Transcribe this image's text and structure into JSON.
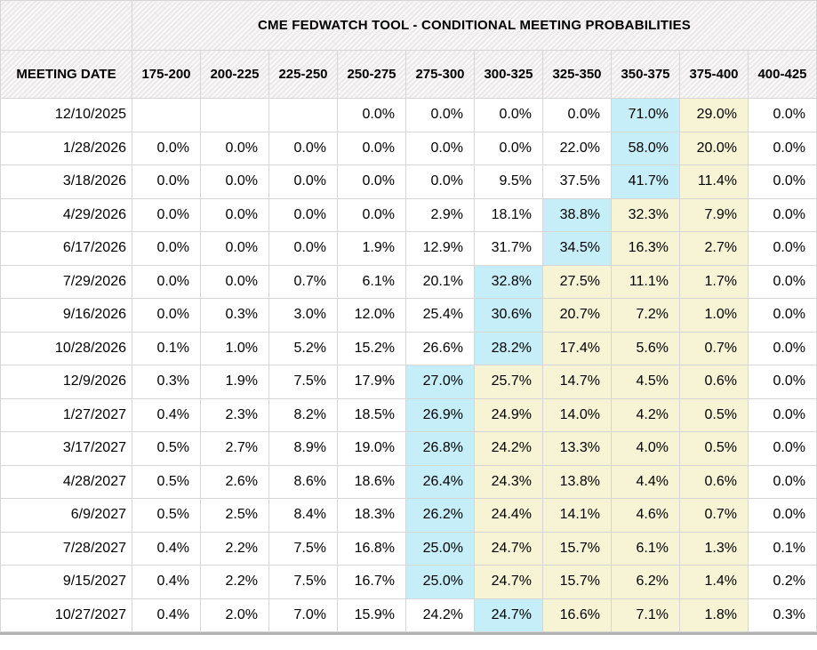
{
  "table": {
    "title": "CME FEDWATCH TOOL - CONDITIONAL MEETING PROBABILITIES",
    "date_column_header": "MEETING DATE",
    "rate_columns": [
      "175-200",
      "200-225",
      "225-250",
      "250-275",
      "275-300",
      "300-325",
      "325-350",
      "350-375",
      "375-400",
      "400-425"
    ],
    "rows": [
      {
        "date": "12/10/2025",
        "values": [
          "",
          "",
          "",
          "0.0%",
          "0.0%",
          "0.0%",
          "0.0%",
          "71.0%",
          "29.0%",
          "0.0%"
        ],
        "highlight": [
          "",
          "",
          "",
          "",
          "",
          "",
          "",
          "b",
          "y",
          ""
        ]
      },
      {
        "date": "1/28/2026",
        "values": [
          "0.0%",
          "0.0%",
          "0.0%",
          "0.0%",
          "0.0%",
          "0.0%",
          "22.0%",
          "58.0%",
          "20.0%",
          "0.0%"
        ],
        "highlight": [
          "",
          "",
          "",
          "",
          "",
          "",
          "",
          "b",
          "y",
          ""
        ]
      },
      {
        "date": "3/18/2026",
        "values": [
          "0.0%",
          "0.0%",
          "0.0%",
          "0.0%",
          "0.0%",
          "9.5%",
          "37.5%",
          "41.7%",
          "11.4%",
          "0.0%"
        ],
        "highlight": [
          "",
          "",
          "",
          "",
          "",
          "",
          "",
          "b",
          "y",
          ""
        ]
      },
      {
        "date": "4/29/2026",
        "values": [
          "0.0%",
          "0.0%",
          "0.0%",
          "0.0%",
          "2.9%",
          "18.1%",
          "38.8%",
          "32.3%",
          "7.9%",
          "0.0%"
        ],
        "highlight": [
          "",
          "",
          "",
          "",
          "",
          "",
          "b",
          "y",
          "y",
          ""
        ]
      },
      {
        "date": "6/17/2026",
        "values": [
          "0.0%",
          "0.0%",
          "0.0%",
          "1.9%",
          "12.9%",
          "31.7%",
          "34.5%",
          "16.3%",
          "2.7%",
          "0.0%"
        ],
        "highlight": [
          "",
          "",
          "",
          "",
          "",
          "",
          "b",
          "y",
          "y",
          ""
        ]
      },
      {
        "date": "7/29/2026",
        "values": [
          "0.0%",
          "0.0%",
          "0.7%",
          "6.1%",
          "20.1%",
          "32.8%",
          "27.5%",
          "11.1%",
          "1.7%",
          "0.0%"
        ],
        "highlight": [
          "",
          "",
          "",
          "",
          "",
          "b",
          "y",
          "y",
          "y",
          ""
        ]
      },
      {
        "date": "9/16/2026",
        "values": [
          "0.0%",
          "0.3%",
          "3.0%",
          "12.0%",
          "25.4%",
          "30.6%",
          "20.7%",
          "7.2%",
          "1.0%",
          "0.0%"
        ],
        "highlight": [
          "",
          "",
          "",
          "",
          "",
          "b",
          "y",
          "y",
          "y",
          ""
        ]
      },
      {
        "date": "10/28/2026",
        "values": [
          "0.1%",
          "1.0%",
          "5.2%",
          "15.2%",
          "26.6%",
          "28.2%",
          "17.4%",
          "5.6%",
          "0.7%",
          "0.0%"
        ],
        "highlight": [
          "",
          "",
          "",
          "",
          "",
          "b",
          "y",
          "y",
          "y",
          ""
        ]
      },
      {
        "date": "12/9/2026",
        "values": [
          "0.3%",
          "1.9%",
          "7.5%",
          "17.9%",
          "27.0%",
          "25.7%",
          "14.7%",
          "4.5%",
          "0.6%",
          "0.0%"
        ],
        "highlight": [
          "",
          "",
          "",
          "",
          "b",
          "y",
          "y",
          "y",
          "y",
          ""
        ]
      },
      {
        "date": "1/27/2027",
        "values": [
          "0.4%",
          "2.3%",
          "8.2%",
          "18.5%",
          "26.9%",
          "24.9%",
          "14.0%",
          "4.2%",
          "0.5%",
          "0.0%"
        ],
        "highlight": [
          "",
          "",
          "",
          "",
          "b",
          "y",
          "y",
          "y",
          "y",
          ""
        ]
      },
      {
        "date": "3/17/2027",
        "values": [
          "0.5%",
          "2.7%",
          "8.9%",
          "19.0%",
          "26.8%",
          "24.2%",
          "13.3%",
          "4.0%",
          "0.5%",
          "0.0%"
        ],
        "highlight": [
          "",
          "",
          "",
          "",
          "b",
          "y",
          "y",
          "y",
          "y",
          ""
        ]
      },
      {
        "date": "4/28/2027",
        "values": [
          "0.5%",
          "2.6%",
          "8.6%",
          "18.6%",
          "26.4%",
          "24.3%",
          "13.8%",
          "4.4%",
          "0.6%",
          "0.0%"
        ],
        "highlight": [
          "",
          "",
          "",
          "",
          "b",
          "y",
          "y",
          "y",
          "y",
          ""
        ]
      },
      {
        "date": "6/9/2027",
        "values": [
          "0.5%",
          "2.5%",
          "8.4%",
          "18.3%",
          "26.2%",
          "24.4%",
          "14.1%",
          "4.6%",
          "0.7%",
          "0.0%"
        ],
        "highlight": [
          "",
          "",
          "",
          "",
          "b",
          "y",
          "y",
          "y",
          "y",
          ""
        ]
      },
      {
        "date": "7/28/2027",
        "values": [
          "0.4%",
          "2.2%",
          "7.5%",
          "16.8%",
          "25.0%",
          "24.7%",
          "15.7%",
          "6.1%",
          "1.3%",
          "0.1%"
        ],
        "highlight": [
          "",
          "",
          "",
          "",
          "b",
          "y",
          "y",
          "y",
          "y",
          ""
        ]
      },
      {
        "date": "9/15/2027",
        "values": [
          "0.4%",
          "2.2%",
          "7.5%",
          "16.7%",
          "25.0%",
          "24.7%",
          "15.7%",
          "6.2%",
          "1.4%",
          "0.2%"
        ],
        "highlight": [
          "",
          "",
          "",
          "",
          "b",
          "y",
          "y",
          "y",
          "y",
          ""
        ]
      },
      {
        "date": "10/27/2027",
        "values": [
          "0.4%",
          "2.0%",
          "7.0%",
          "15.9%",
          "24.2%",
          "24.7%",
          "16.6%",
          "7.1%",
          "1.8%",
          "0.3%"
        ],
        "highlight": [
          "",
          "",
          "",
          "",
          "",
          "b",
          "y",
          "y",
          "y",
          ""
        ]
      }
    ],
    "colors": {
      "highlight_blue": "#c5eef8",
      "highlight_yellow": "#f6f4d4",
      "header_bg": "#f1efef",
      "grid_line": "#d6d6d6",
      "bottom_bar": "#b2b2b2",
      "text": "#000000"
    }
  }
}
